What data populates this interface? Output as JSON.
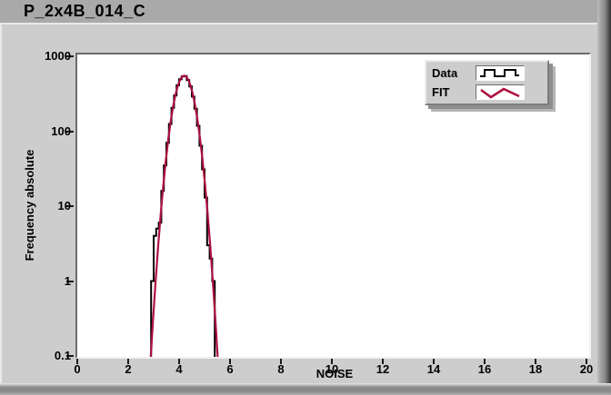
{
  "window": {
    "title": "P_2x4B_014_C"
  },
  "colors": {
    "titlebar_bg": "#a9a9a9",
    "panel_bg": "#cdcdcd",
    "plot_bg": "#ffffff",
    "data_series": "#000000",
    "fit_series": "#ad1140"
  },
  "chart_data": {
    "type": "line",
    "title": "P_2x4B_014_C",
    "xlabel": "NOISE",
    "ylabel": "Frequency absolute",
    "grid": false,
    "legend_position": "top-right",
    "x_axis": {
      "min": 0,
      "max": 20,
      "ticks": [
        0,
        2,
        4,
        6,
        8,
        10,
        12,
        14,
        16,
        18,
        20
      ]
    },
    "y_axis": {
      "scale": "log",
      "min": 0.1,
      "max": 1000,
      "ticks": [
        1000,
        100,
        10,
        1,
        0.1
      ],
      "tick_labels": [
        "1000",
        "100",
        "10",
        "1",
        "0.1"
      ]
    },
    "series": [
      {
        "name": "Data",
        "style": "histogram-step",
        "color": "#000000",
        "bin_start": 2.9,
        "bin_width": 0.1,
        "counts": [
          1,
          4,
          5,
          6,
          16,
          35,
          70,
          125,
          205,
          300,
          410,
          495,
          540,
          545,
          480,
          395,
          290,
          200,
          118,
          64,
          31,
          13,
          3,
          2,
          1,
          0
        ]
      },
      {
        "name": "FIT",
        "style": "gaussian-line",
        "color": "#ad1140",
        "amplitude": 550,
        "mean": 4.2,
        "sigma": 0.316,
        "x_range": [
          2.84,
          5.56
        ]
      }
    ]
  }
}
